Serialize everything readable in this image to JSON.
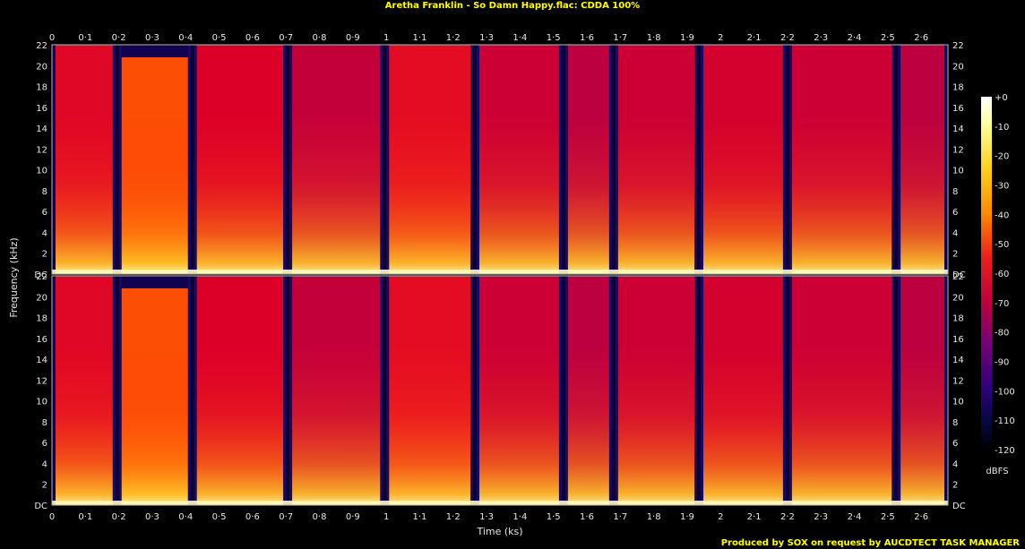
{
  "chart_data": {
    "type": "heatmap",
    "title": "Aretha Franklin - So Damn Happy.flac: CDDA 100%",
    "xlabel": "Time (ks)",
    "ylabel": "Frequency (kHz)",
    "footer": "Produced by SOX on request by AUCDTECT TASK MANAGER",
    "xlim": [
      0,
      2.68
    ],
    "x_ticks": [
      "0",
      "0·1",
      "0·2",
      "0·3",
      "0·4",
      "0·5",
      "0·6",
      "0·7",
      "0·8",
      "0·9",
      "1",
      "1·1",
      "1·2",
      "1·3",
      "1·4",
      "1·5",
      "1·6",
      "1·7",
      "1·8",
      "1·9",
      "2",
      "2·1",
      "2·2",
      "2·3",
      "2·4",
      "2·5",
      "2·6"
    ],
    "ylim": [
      0,
      22
    ],
    "y_ticks": [
      "DC",
      "2",
      "4",
      "6",
      "8",
      "10",
      "12",
      "14",
      "16",
      "18",
      "20",
      "22"
    ],
    "channels": 2,
    "colorbar": {
      "label": "dBFS",
      "range": [
        -120,
        0
      ],
      "ticks": [
        "+0",
        "-10",
        "-20",
        "-30",
        "-40",
        "-50",
        "-60",
        "-70",
        "-80",
        "-90",
        "-100",
        "-110",
        "-120"
      ]
    },
    "track_boundaries_ks": [
      0.195,
      0.42,
      0.705,
      0.995,
      1.265,
      1.53,
      1.68,
      1.935,
      2.2,
      2.525
    ],
    "segments": [
      {
        "start_ks": 0.0,
        "end_ks": 0.195,
        "top_khz": 22,
        "level_dbfs": -58
      },
      {
        "start_ks": 0.195,
        "end_ks": 0.42,
        "top_khz": 20.8,
        "level_dbfs": -42
      },
      {
        "start_ks": 0.42,
        "end_ks": 0.705,
        "top_khz": 22,
        "level_dbfs": -60
      },
      {
        "start_ks": 0.705,
        "end_ks": 0.995,
        "top_khz": 22,
        "level_dbfs": -66
      },
      {
        "start_ks": 0.995,
        "end_ks": 1.265,
        "top_khz": 22,
        "level_dbfs": -56
      },
      {
        "start_ks": 1.265,
        "end_ks": 1.53,
        "top_khz": 22,
        "level_dbfs": -64
      },
      {
        "start_ks": 1.53,
        "end_ks": 1.68,
        "top_khz": 22,
        "level_dbfs": -68
      },
      {
        "start_ks": 1.68,
        "end_ks": 1.935,
        "top_khz": 22,
        "level_dbfs": -64
      },
      {
        "start_ks": 1.935,
        "end_ks": 2.2,
        "top_khz": 22,
        "level_dbfs": -62
      },
      {
        "start_ks": 2.2,
        "end_ks": 2.525,
        "top_khz": 22,
        "level_dbfs": -64
      },
      {
        "start_ks": 2.525,
        "end_ks": 2.68,
        "top_khz": 22,
        "level_dbfs": -68
      }
    ],
    "grid": false,
    "legend": "right"
  }
}
